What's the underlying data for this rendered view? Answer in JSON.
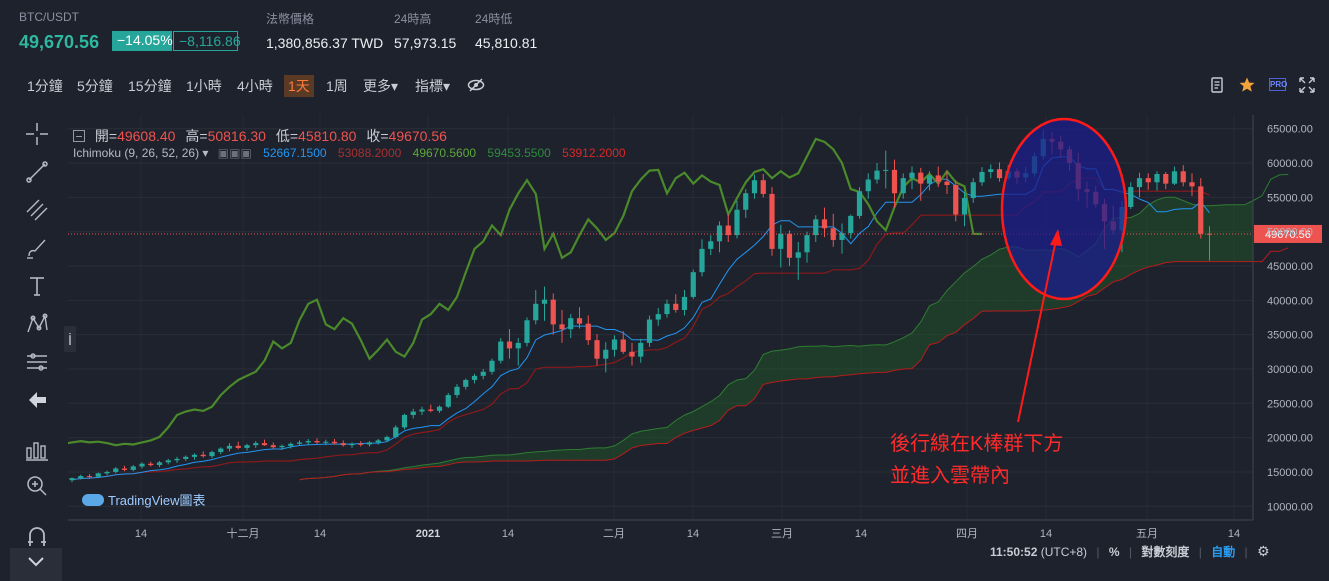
{
  "ticker": {
    "symbol": "BTC/USDT",
    "price": "49,670.56",
    "change_pct": "−14.05%",
    "change_abs": "−8,116.86",
    "fiat_label": "法幣價格",
    "fiat_value": "1,380,856.37 TWD",
    "high_label": "24時高",
    "high_value": "57,973.15",
    "low_label": "24時低",
    "low_value": "45,810.81"
  },
  "toolbar": {
    "intervals": [
      "1分鐘",
      "5分鐘",
      "15分鐘",
      "1小時",
      "4小時",
      "1天",
      "1周"
    ],
    "active_interval": "1天",
    "more_label": "更多▾",
    "indicators_label": "指標▾",
    "pro_label": "PRO"
  },
  "colors": {
    "bg": "#1e222d",
    "up": "#26a69a",
    "down": "#ef5350",
    "conversion": "#2196f3",
    "base": "#8b1a1a",
    "lagging": "#4a8a2a",
    "span_a": "#1f5e26",
    "span_b": "#7a1b1b",
    "annotation": "#ff2a2a",
    "ellipse_fill": "#1c1d8c"
  },
  "legend": {
    "open_label": "開=",
    "open": "49608.40",
    "high_label": "高=",
    "high": "50816.30",
    "low_label": "低=",
    "low": "45810.80",
    "close_label": "收=",
    "close": "49670.56"
  },
  "ichimoku": {
    "name": "Ichimoku (9, 26, 52, 26)",
    "conversion": "52667.1500",
    "base": "53088.2000",
    "lagging": "49670.5600",
    "span_a": "59453.5500",
    "span_b": "53912.2000"
  },
  "chart_data": {
    "type": "candlestick",
    "price_axis": [
      "65000.00",
      "60000.00",
      "55000.00",
      "50000.00",
      "45000.00",
      "40000.00",
      "35000.00",
      "30000.00",
      "25000.00",
      "20000.00",
      "15000.00",
      "10000.00"
    ],
    "ylim": [
      8000,
      67000
    ],
    "time_axis": [
      "14",
      "十二月",
      "14",
      "2021",
      "14",
      "二月",
      "14",
      "三月",
      "14",
      "四月",
      "14",
      "五月",
      "14"
    ],
    "last_price_label": "49670.56",
    "last_price": 49670.56,
    "candles": [
      [
        13800,
        14200,
        13500,
        14100
      ],
      [
        14100,
        14600,
        13900,
        14400
      ],
      [
        14400,
        14700,
        14000,
        14300
      ],
      [
        14300,
        14900,
        14100,
        14800
      ],
      [
        14800,
        15200,
        14500,
        15000
      ],
      [
        15000,
        15700,
        14800,
        15500
      ],
      [
        15500,
        15900,
        15100,
        15300
      ],
      [
        15300,
        16000,
        15100,
        15800
      ],
      [
        15800,
        16400,
        15500,
        16200
      ],
      [
        16200,
        16500,
        15800,
        16000
      ],
      [
        16000,
        16600,
        15700,
        16400
      ],
      [
        16400,
        16900,
        16100,
        16700
      ],
      [
        16700,
        17200,
        16300,
        16900
      ],
      [
        16900,
        17400,
        16600,
        17200
      ],
      [
        17200,
        17700,
        16800,
        17500
      ],
      [
        17500,
        18000,
        17100,
        17300
      ],
      [
        17300,
        18100,
        17000,
        17900
      ],
      [
        17900,
        18600,
        17600,
        18400
      ],
      [
        18400,
        19200,
        18000,
        18800
      ],
      [
        18800,
        19400,
        18300,
        18500
      ],
      [
        18500,
        19100,
        18100,
        18900
      ],
      [
        18900,
        19500,
        18500,
        19200
      ],
      [
        19200,
        19700,
        18800,
        18900
      ],
      [
        18900,
        19300,
        18300,
        18600
      ],
      [
        18600,
        19000,
        18200,
        18800
      ],
      [
        18800,
        19300,
        18400,
        19100
      ],
      [
        19100,
        19600,
        18800,
        19300
      ],
      [
        19300,
        19800,
        18900,
        19500
      ],
      [
        19500,
        19900,
        19100,
        19300
      ],
      [
        19300,
        19700,
        18900,
        19400
      ],
      [
        19400,
        19800,
        19000,
        19200
      ],
      [
        19200,
        19600,
        18700,
        18900
      ],
      [
        18900,
        19300,
        18500,
        19100
      ],
      [
        19100,
        19500,
        18700,
        19000
      ],
      [
        19000,
        19500,
        18700,
        19300
      ],
      [
        19300,
        19800,
        19000,
        19600
      ],
      [
        19600,
        20300,
        19400,
        20100
      ],
      [
        20100,
        21800,
        19900,
        21500
      ],
      [
        21500,
        23500,
        21200,
        23300
      ],
      [
        23300,
        24200,
        22800,
        23800
      ],
      [
        23800,
        24500,
        23300,
        24100
      ],
      [
        24100,
        24800,
        23700,
        23900
      ],
      [
        23900,
        24700,
        23600,
        24500
      ],
      [
        24500,
        26500,
        24300,
        26200
      ],
      [
        26200,
        27800,
        25800,
        27400
      ],
      [
        27400,
        28600,
        27000,
        28400
      ],
      [
        28400,
        29300,
        27900,
        29000
      ],
      [
        29000,
        30000,
        28500,
        29600
      ],
      [
        29600,
        31500,
        29200,
        31200
      ],
      [
        31200,
        34500,
        30800,
        34000
      ],
      [
        34000,
        35800,
        31500,
        33000
      ],
      [
        33000,
        34500,
        30500,
        33800
      ],
      [
        33800,
        37500,
        33300,
        37100
      ],
      [
        37100,
        41500,
        36500,
        39500
      ],
      [
        39500,
        42000,
        37000,
        40100
      ],
      [
        40100,
        41000,
        35000,
        36500
      ],
      [
        36500,
        38600,
        33800,
        35800
      ],
      [
        35800,
        38000,
        34500,
        37400
      ],
      [
        37400,
        39000,
        35900,
        36600
      ],
      [
        36600,
        37800,
        33500,
        34200
      ],
      [
        34200,
        35100,
        30500,
        31500
      ],
      [
        31500,
        33900,
        29500,
        32800
      ],
      [
        32800,
        34900,
        31800,
        34300
      ],
      [
        34300,
        35500,
        32200,
        32500
      ],
      [
        32500,
        33800,
        30500,
        31800
      ],
      [
        31800,
        34400,
        30900,
        33800
      ],
      [
        33800,
        37800,
        33200,
        37200
      ],
      [
        37200,
        38900,
        36300,
        38000
      ],
      [
        38000,
        40100,
        37500,
        39500
      ],
      [
        39500,
        40900,
        38200,
        38600
      ],
      [
        38600,
        41500,
        37800,
        40500
      ],
      [
        40500,
        44500,
        40200,
        44100
      ],
      [
        44100,
        48900,
        43500,
        47500
      ],
      [
        47500,
        49500,
        46600,
        48600
      ],
      [
        48600,
        51500,
        47000,
        50900
      ],
      [
        50900,
        52500,
        48500,
        49500
      ],
      [
        49500,
        54500,
        49000,
        53200
      ],
      [
        53200,
        56200,
        52000,
        55600
      ],
      [
        55600,
        58300,
        54800,
        57500
      ],
      [
        57500,
        58400,
        55000,
        55500
      ],
      [
        55500,
        56500,
        46500,
        47500
      ],
      [
        47500,
        51000,
        44800,
        49700
      ],
      [
        49700,
        50200,
        45000,
        46200
      ],
      [
        46200,
        48500,
        43000,
        47000
      ],
      [
        47000,
        50000,
        45500,
        49500
      ],
      [
        49500,
        52400,
        48500,
        51800
      ],
      [
        51800,
        53500,
        49200,
        50500
      ],
      [
        50500,
        52600,
        47800,
        48800
      ],
      [
        48800,
        51200,
        46800,
        49800
      ],
      [
        49800,
        52500,
        49000,
        52300
      ],
      [
        52300,
        56500,
        51900,
        55900
      ],
      [
        55900,
        58500,
        54800,
        57600
      ],
      [
        57600,
        60000,
        57000,
        58900
      ],
      [
        58900,
        61800,
        56300,
        59000
      ],
      [
        59000,
        60500,
        53500,
        55600
      ],
      [
        55600,
        58500,
        54800,
        57800
      ],
      [
        57800,
        59500,
        56200,
        58600
      ],
      [
        58600,
        59300,
        54500,
        57000
      ],
      [
        57000,
        58800,
        56000,
        58200
      ],
      [
        58200,
        59500,
        56500,
        57300
      ],
      [
        57300,
        58900,
        55500,
        56800
      ],
      [
        56800,
        57500,
        51500,
        52500
      ],
      [
        52500,
        55800,
        50800,
        54900
      ],
      [
        54900,
        57800,
        54200,
        57200
      ],
      [
        57200,
        59400,
        56700,
        58700
      ],
      [
        58700,
        59800,
        57800,
        59100
      ],
      [
        59100,
        60100,
        57300,
        57800
      ],
      [
        57800,
        59700,
        57500,
        58800
      ],
      [
        58800,
        59200,
        57000,
        57900
      ],
      [
        57900,
        59500,
        57200,
        58500
      ],
      [
        58500,
        61500,
        58000,
        61000
      ],
      [
        61000,
        64800,
        60500,
        63500
      ],
      [
        63500,
        64500,
        61300,
        63100
      ],
      [
        63100,
        63900,
        60800,
        62000
      ],
      [
        62000,
        62500,
        58900,
        60000
      ],
      [
        60000,
        61500,
        54500,
        56200
      ],
      [
        56200,
        57300,
        53500,
        55800
      ],
      [
        55800,
        56700,
        53500,
        54000
      ],
      [
        54000,
        54800,
        47500,
        51500
      ],
      [
        51500,
        53800,
        49700,
        50200
      ],
      [
        50200,
        54500,
        47000,
        53600
      ],
      [
        53600,
        57200,
        53300,
        56500
      ],
      [
        56500,
        58600,
        55000,
        57800
      ],
      [
        57800,
        58500,
        56100,
        57200
      ],
      [
        57200,
        58800,
        56000,
        58400
      ],
      [
        58400,
        58700,
        56200,
        57000
      ],
      [
        57000,
        59500,
        56800,
        58800
      ],
      [
        58800,
        59700,
        56600,
        57200
      ],
      [
        57200,
        58500,
        55200,
        56600
      ],
      [
        56600,
        57800,
        49000,
        49700
      ],
      [
        49700,
        50800,
        45800,
        49670
      ]
    ]
  },
  "annotation": {
    "line1": "後行線在K棒群下方",
    "line2": "並進入雲帶內"
  },
  "watermark": "TradingView圖表",
  "status": {
    "time": "11:50:52",
    "tz": "(UTC+8)",
    "percent": "%",
    "log_scale": "對數刻度",
    "auto": "自動"
  }
}
